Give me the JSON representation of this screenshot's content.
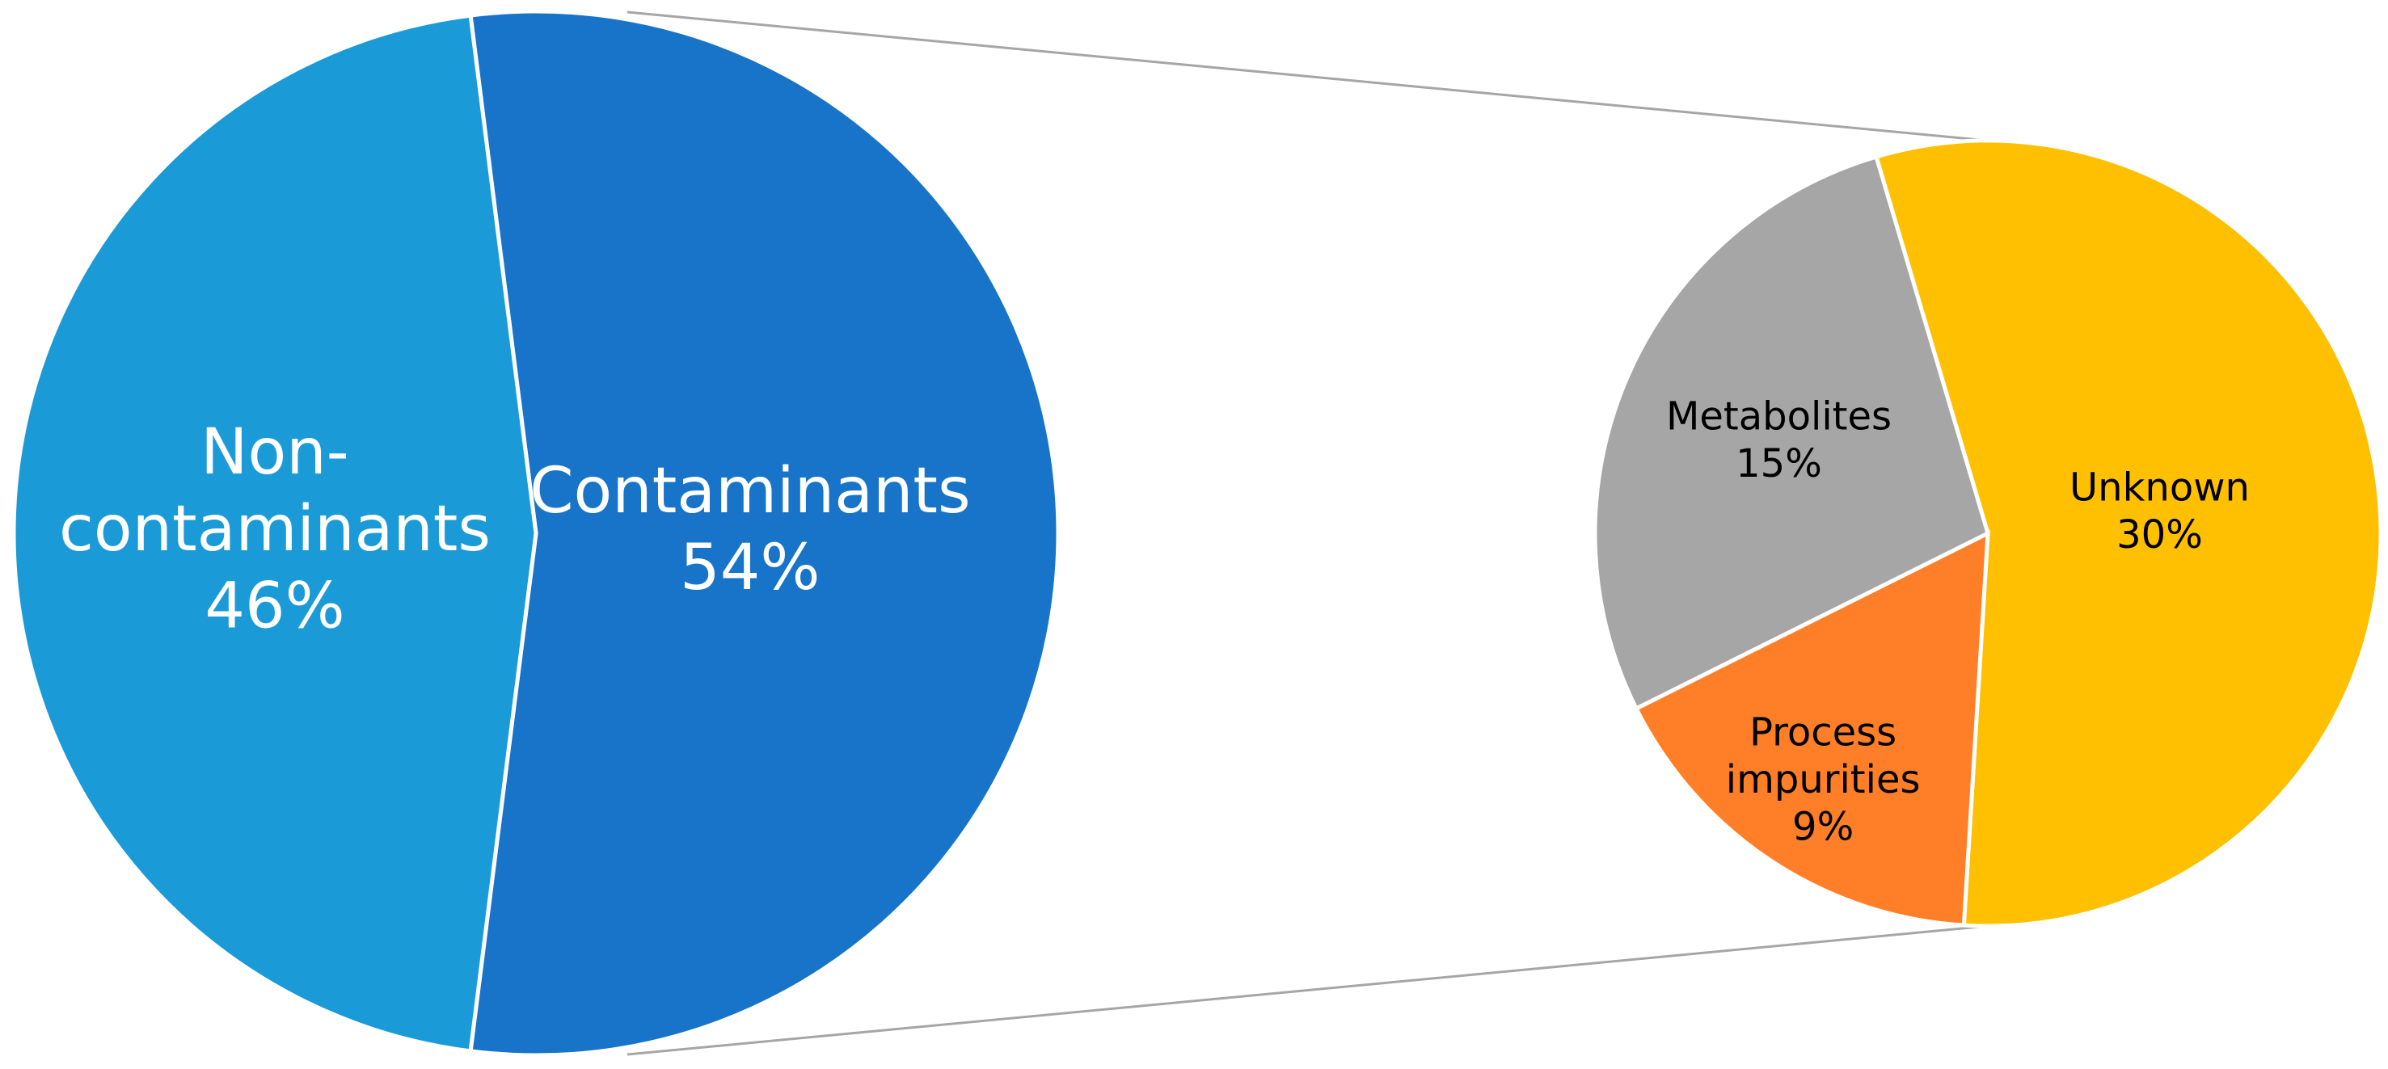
{
  "chart_data": [
    {
      "type": "pie",
      "categories": [
        "Non-contaminants",
        "Contaminants"
      ],
      "values": [
        46,
        54
      ],
      "value_labels": [
        "46%",
        "54%"
      ],
      "colors": [
        "#1a9bd8",
        "#1874c9"
      ]
    },
    {
      "type": "pie",
      "categories": [
        "Unknown",
        "Process impurities",
        "Metabolites"
      ],
      "values": [
        30,
        9,
        15
      ],
      "value_labels": [
        "30%",
        "9%",
        "15%"
      ],
      "colors": [
        "#fec000",
        "#fe7f27",
        "#a6a6a6"
      ]
    }
  ]
}
